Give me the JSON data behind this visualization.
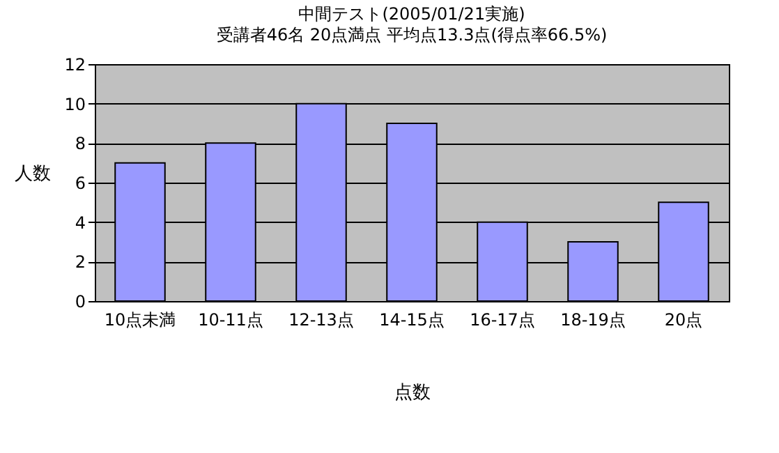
{
  "chart_data": {
    "type": "bar",
    "title": "中間テスト(2005/01/21実施)",
    "subtitle": "受講者46名 20点満点 平均点13.3点(得点率66.5%)",
    "xlabel": "点数",
    "ylabel": "人数",
    "categories": [
      "10点未満",
      "10-11点",
      "12-13点",
      "14-15点",
      "16-17点",
      "18-19点",
      "20点"
    ],
    "values": [
      7,
      8,
      10,
      9,
      4,
      3,
      5
    ],
    "color": "#9999ff",
    "ylim": [
      0,
      12
    ],
    "yticks": [
      0,
      2,
      4,
      6,
      8,
      10,
      12
    ],
    "grid": "y"
  }
}
